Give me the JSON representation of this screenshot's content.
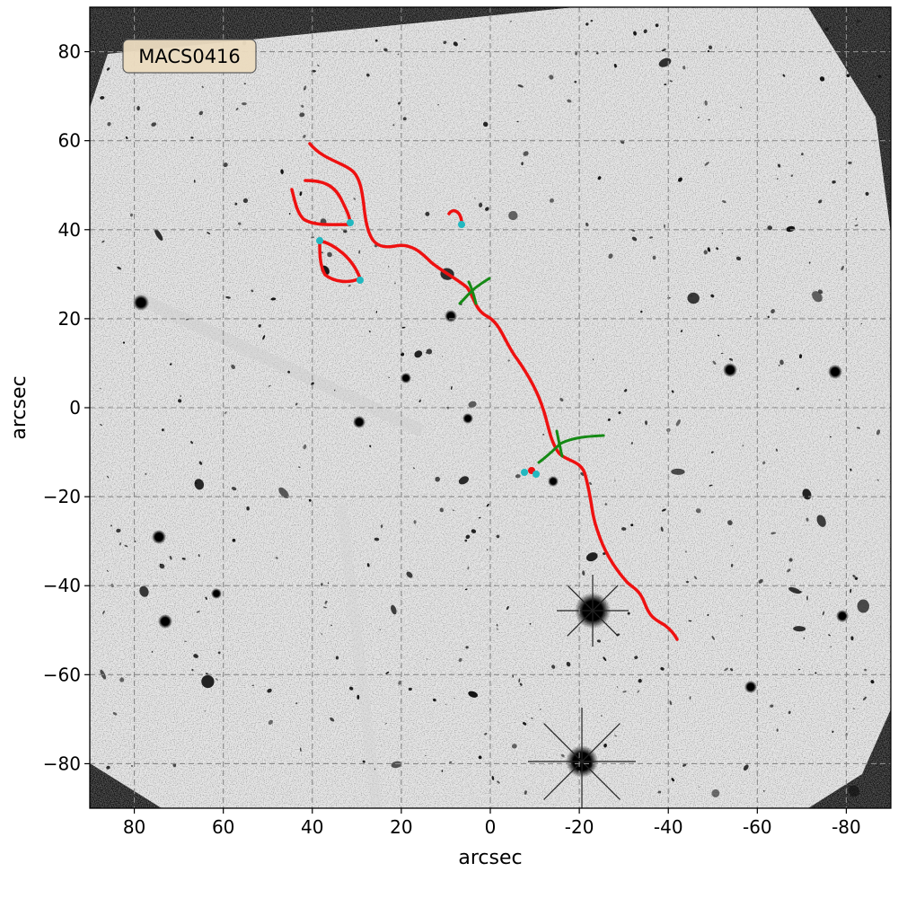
{
  "figure": {
    "label": "MACS0416",
    "xlabel": "arcsec",
    "ylabel": "arcsec",
    "xlim": [
      90,
      -90
    ],
    "ylim": [
      -90,
      90
    ],
    "xticks": [
      80,
      60,
      40,
      20,
      0,
      -20,
      -40,
      -60,
      -80
    ],
    "xtick_labels": [
      "80",
      "60",
      "40",
      "20",
      "0",
      "-20",
      "-40",
      "-60",
      "-80"
    ],
    "yticks": [
      80,
      60,
      40,
      20,
      0,
      -20,
      -40,
      -60,
      -80
    ],
    "ytick_labels": [
      "80",
      "60",
      "40",
      "20",
      "0",
      "−20",
      "−40",
      "−60",
      "−80"
    ],
    "grid": true,
    "colors": {
      "critical_curve": "#ee1111",
      "caustic": "#158a15",
      "image_marker": "#22b8c0",
      "grid": "#8a8a8a",
      "badge_fill": "#ecdcc0"
    }
  }
}
